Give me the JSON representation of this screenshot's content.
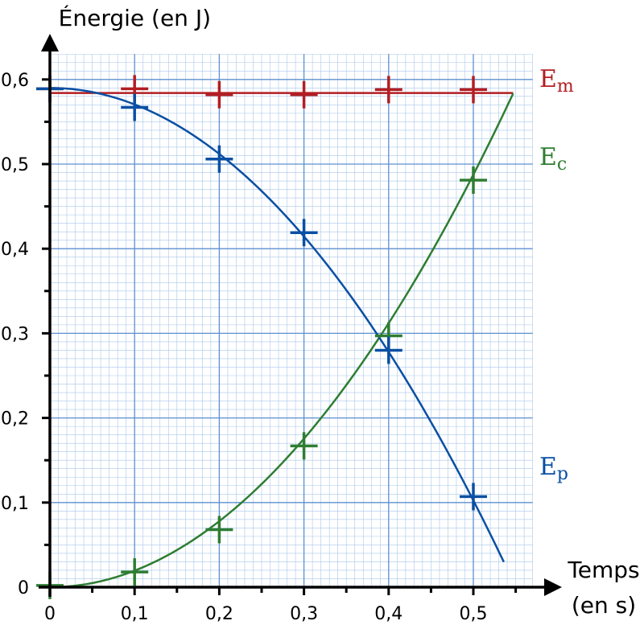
{
  "chart_data": {
    "type": "scatter",
    "ylabel": "Énergie (en J)",
    "xlabel_line1": "Temps",
    "xlabel_line2": "(en s)",
    "xlim": [
      0,
      0.57
    ],
    "ylim": [
      0,
      0.63
    ],
    "x_ticks": [
      {
        "value": 0,
        "label": "0"
      },
      {
        "value": 0.1,
        "label": "0,1"
      },
      {
        "value": 0.2,
        "label": "0,2"
      },
      {
        "value": 0.3,
        "label": "0,3"
      },
      {
        "value": 0.4,
        "label": "0,4"
      },
      {
        "value": 0.5,
        "label": "0,5"
      }
    ],
    "y_ticks": [
      {
        "value": 0,
        "label": "0"
      },
      {
        "value": 0.1,
        "label": "0,1"
      },
      {
        "value": 0.2,
        "label": "0,2"
      },
      {
        "value": 0.3,
        "label": "0,3"
      },
      {
        "value": 0.4,
        "label": "0,4"
      },
      {
        "value": 0.5,
        "label": "0,5"
      },
      {
        "value": 0.6,
        "label": "0,6"
      }
    ],
    "grid": true,
    "series": [
      {
        "key": "em",
        "label_main": "E",
        "label_sub": "m",
        "color": "#b21e23",
        "points": [
          [
            0,
            0.589
          ],
          [
            0.1,
            0.589
          ],
          [
            0.2,
            0.582
          ],
          [
            0.3,
            0.582
          ],
          [
            0.4,
            0.588
          ],
          [
            0.5,
            0.588
          ]
        ],
        "fit": {
          "kind": "constant",
          "y": 0.584,
          "x_range": [
            0,
            0.547
          ]
        }
      },
      {
        "key": "ec",
        "label_main": "E",
        "label_sub": "c",
        "color": "#2e7d32",
        "points": [
          [
            0,
            0.002
          ],
          [
            0.1,
            0.018
          ],
          [
            0.2,
            0.068
          ],
          [
            0.3,
            0.167
          ],
          [
            0.4,
            0.297
          ],
          [
            0.5,
            0.481
          ]
        ],
        "fit": {
          "kind": "quadratic",
          "a": 1.95,
          "x_range": [
            0,
            0.547
          ]
        }
      },
      {
        "key": "ep",
        "label_main": "E",
        "label_sub": "p",
        "color": "#0a4fa3",
        "points": [
          [
            0,
            0.589
          ],
          [
            0.1,
            0.567
          ],
          [
            0.2,
            0.506
          ],
          [
            0.3,
            0.419
          ],
          [
            0.4,
            0.28
          ],
          [
            0.5,
            0.107
          ]
        ],
        "fit": {
          "kind": "quadratic_down",
          "c": 0.59,
          "a": 1.95,
          "x_range": [
            0,
            0.536
          ]
        }
      }
    ]
  }
}
